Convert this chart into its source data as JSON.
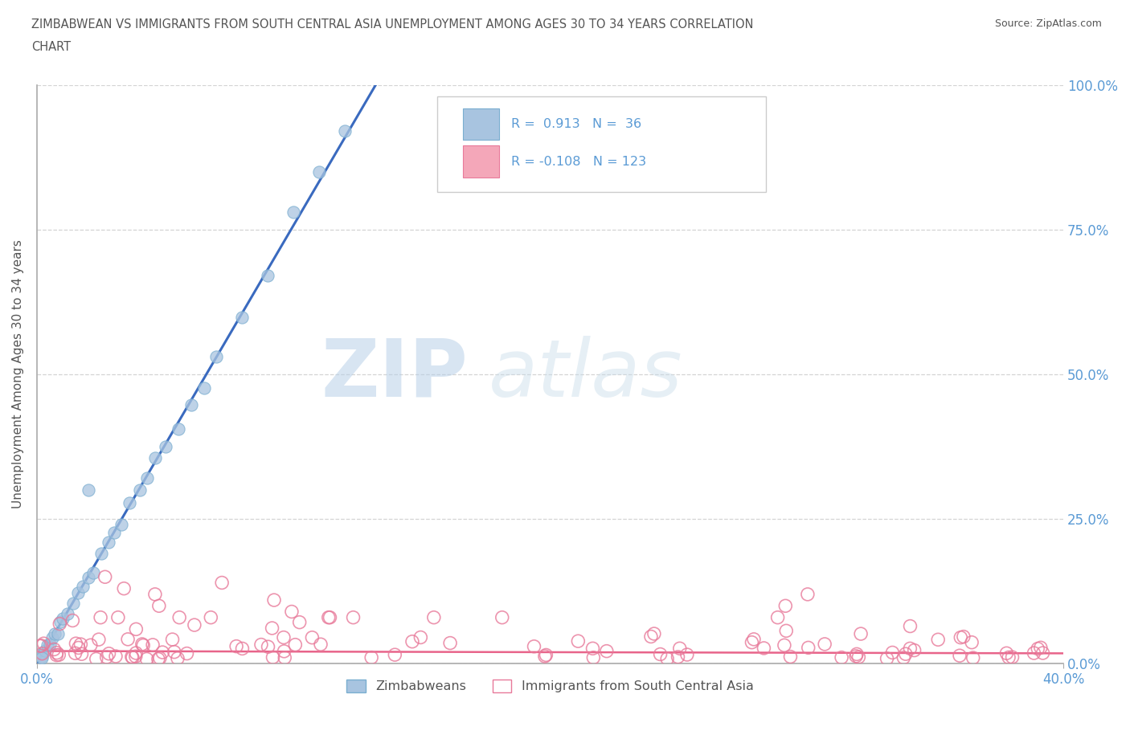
{
  "title_line1": "ZIMBABWEAN VS IMMIGRANTS FROM SOUTH CENTRAL ASIA UNEMPLOYMENT AMONG AGES 30 TO 34 YEARS CORRELATION",
  "title_line2": "CHART",
  "source": "Source: ZipAtlas.com",
  "ylabel": "Unemployment Among Ages 30 to 34 years",
  "xlim": [
    0.0,
    0.4
  ],
  "ylim": [
    0.0,
    1.0
  ],
  "yticks": [
    0.0,
    0.25,
    0.5,
    0.75,
    1.0
  ],
  "ytick_labels": [
    "0.0%",
    "25.0%",
    "50.0%",
    "75.0%",
    "100.0%"
  ],
  "blue_R": 0.913,
  "blue_N": 36,
  "pink_R": -0.108,
  "pink_N": 123,
  "blue_color": "#a8c4e0",
  "blue_edge_color": "#7aaed0",
  "blue_line_color": "#3a6abf",
  "pink_color": "#f4a7b9",
  "pink_edge_color": "#e87a9a",
  "pink_line_color": "#e8648a",
  "legend_blue_label": "Zimbabweans",
  "legend_pink_label": "Immigrants from South Central Asia",
  "watermark_zip": "ZIP",
  "watermark_atlas": "atlas",
  "background_color": "#ffffff",
  "grid_color": "#d0d0d0",
  "title_color": "#555555",
  "axis_color": "#aaaaaa",
  "label_color": "#5b9bd5",
  "blue_line_x": [
    0.0,
    0.132
  ],
  "blue_line_y": [
    0.0,
    1.0
  ],
  "pink_line_x": [
    0.0,
    0.4
  ],
  "pink_line_y": [
    0.022,
    0.018
  ]
}
